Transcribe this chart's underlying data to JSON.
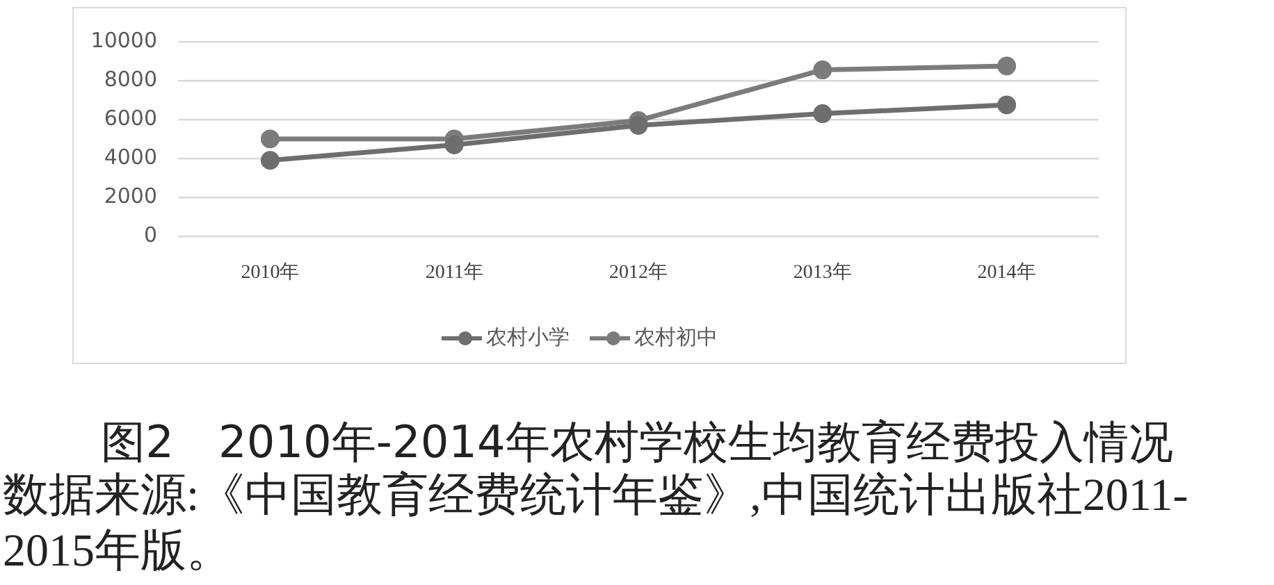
{
  "chart_data": {
    "type": "line",
    "title": "图2　2010年-2014年农村学校生均教育经费投入情况",
    "annotations": [
      "数据来源:《中国教育经费统计年鉴》,中国统计出版社2011-2015年版。"
    ],
    "categories": [
      "2010年",
      "2011年",
      "2012年",
      "2013年",
      "2014年"
    ],
    "series": [
      {
        "name": "农村小学",
        "color": "#6e6e6e",
        "values": [
          3900,
          4700,
          5700,
          6300,
          6750
        ]
      },
      {
        "name": "农村初中",
        "color": "#7b7b7b",
        "values": [
          5000,
          5000,
          5950,
          8550,
          8750
        ]
      }
    ],
    "ylim": [
      0,
      10000
    ],
    "yticks": [
      0,
      2000,
      4000,
      6000,
      8000,
      10000
    ],
    "grid": "y",
    "legend": "bottom",
    "marker": "circle",
    "line_style": "solid"
  }
}
